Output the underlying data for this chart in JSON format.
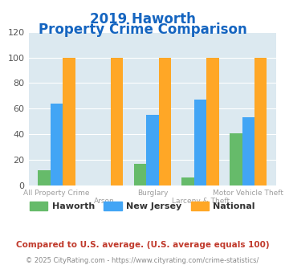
{
  "title_line1": "2019 Haworth",
  "title_line2": "Property Crime Comparison",
  "title_color": "#1565c0",
  "haworth": [
    12,
    0,
    17,
    6,
    41
  ],
  "new_jersey": [
    64,
    0,
    55,
    67,
    53
  ],
  "national": [
    100,
    100,
    100,
    100,
    100
  ],
  "haworth_color": "#66bb6a",
  "nj_color": "#42a5f5",
  "national_color": "#ffa726",
  "ylim": [
    0,
    120
  ],
  "yticks": [
    0,
    20,
    40,
    60,
    80,
    100,
    120
  ],
  "plot_bg": "#dce9f0",
  "fig_bg": "#ffffff",
  "label_row1": [
    "All Property Crime",
    "",
    "Burglary",
    "",
    "Motor Vehicle Theft"
  ],
  "label_row2": [
    "",
    "Arson",
    "",
    "Larceny & Theft",
    ""
  ],
  "legend_labels": [
    "Haworth",
    "New Jersey",
    "National"
  ],
  "footnote1": "Compared to U.S. average. (U.S. average equals 100)",
  "footnote2": "© 2025 CityRating.com - https://www.cityrating.com/crime-statistics/",
  "footnote1_color": "#c0392b",
  "footnote2_color": "#888888"
}
